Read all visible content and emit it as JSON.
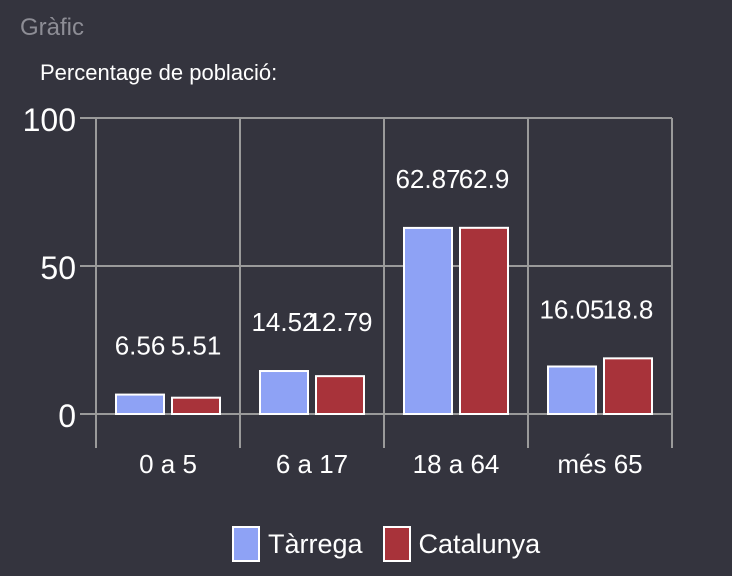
{
  "panel": {
    "title": "Gràfic"
  },
  "colors": {
    "background": "#34343e",
    "grid": "#9a9a9a",
    "text": "#ffffff",
    "bar_outline": "#ffffff"
  },
  "chart_data": {
    "type": "bar",
    "title": "Percentage de població:",
    "categories": [
      "0 a 5",
      "6 a 17",
      "18 a 64",
      "més 65"
    ],
    "series": [
      {
        "name": "Tàrrega",
        "color": "#8ea2f5",
        "values": [
          6.56,
          14.52,
          62.87,
          16.05
        ]
      },
      {
        "name": "Catalunya",
        "color": "#a8333a",
        "values": [
          5.51,
          12.79,
          62.9,
          18.8
        ]
      }
    ],
    "value_labels": [
      [
        "6.56",
        "14.52",
        "62.87",
        "16.05"
      ],
      [
        "5.51",
        "12.79",
        "62.9",
        "18.8"
      ]
    ],
    "y_ticks": [
      0,
      50,
      100
    ],
    "ylim": [
      0,
      100
    ],
    "grid": true,
    "legend": "bottom"
  }
}
